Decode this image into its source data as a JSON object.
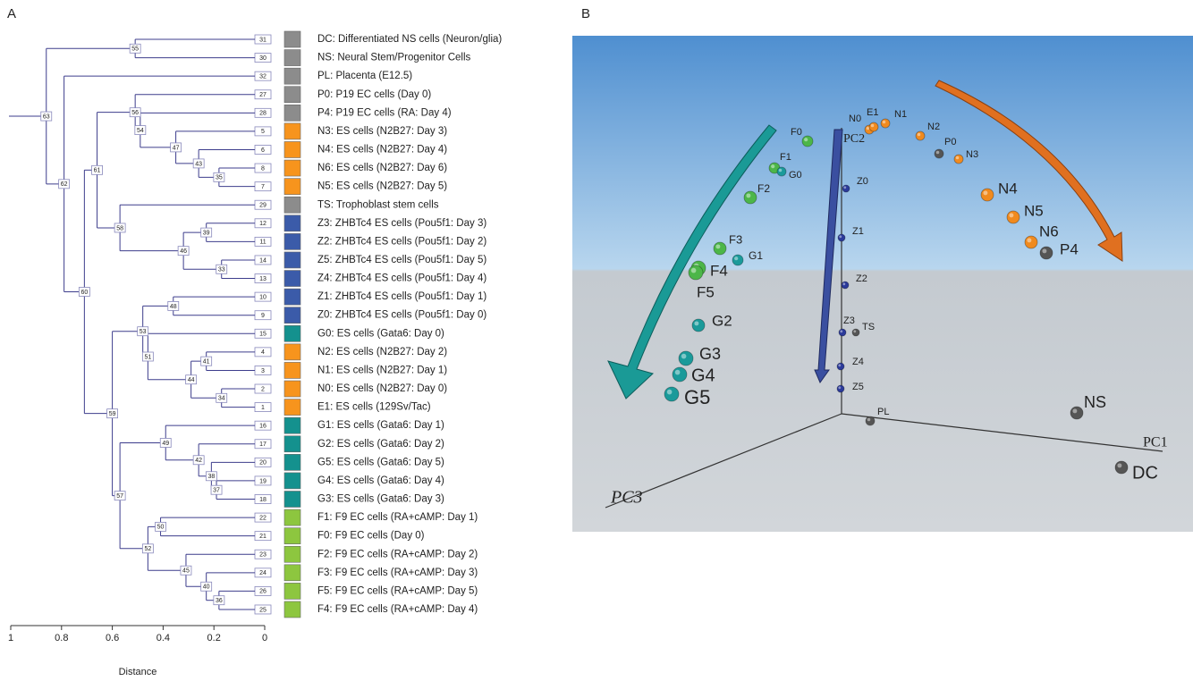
{
  "panel_labels": [
    "A",
    "B"
  ],
  "dendrogram": {
    "axis_label": "Distance",
    "xlim": [
      1,
      0
    ],
    "xticks": [
      1,
      0.8,
      0.6,
      0.4,
      0.2,
      0
    ],
    "tree": {
      "label": "63",
      "distance": 0.86,
      "children": [
        {
          "label": "55",
          "distance": 0.51,
          "children": [
            {
              "id": "31",
              "label": "DC: Differentiated NS cells (Neuron/glia)",
              "color": "#8c8c8c"
            },
            {
              "id": "30",
              "label": "NS: Neural Stem/Progenitor Cells",
              "color": "#8c8c8c"
            }
          ]
        },
        {
          "label": "62",
          "distance": 0.79,
          "children": [
            {
              "id": "32",
              "label": "PL: Placenta (E12.5)",
              "color": "#8c8c8c"
            },
            {
              "label": "60",
              "distance": 0.71,
              "children": [
                {
                  "label": "61",
                  "distance": 0.66,
                  "children": [
                    {
                      "label": "56",
                      "distance": 0.51,
                      "children": [
                        {
                          "id": "27",
                          "label": "P0: P19 EC cells (Day 0)",
                          "color": "#8c8c8c"
                        },
                        {
                          "label": "54",
                          "distance": 0.49,
                          "children": [
                            {
                              "id": "28",
                              "label": "P4: P19 EC cells (RA: Day 4)",
                              "color": "#8c8c8c"
                            },
                            {
                              "label": "47",
                              "distance": 0.35,
                              "children": [
                                {
                                  "id": "5",
                                  "label": "N3: ES cells (N2B27: Day 3)",
                                  "color": "#f7941d"
                                },
                                {
                                  "label": "43",
                                  "distance": 0.26,
                                  "children": [
                                    {
                                      "id": "6",
                                      "label": "N4: ES cells (N2B27: Day 4)",
                                      "color": "#f7941d"
                                    },
                                    {
                                      "label": "35",
                                      "distance": 0.18,
                                      "children": [
                                        {
                                          "id": "8",
                                          "label": "N6: ES cells (N2B27: Day 6)",
                                          "color": "#f7941d"
                                        },
                                        {
                                          "id": "7",
                                          "label": "N5: ES cells (N2B27: Day 5)",
                                          "color": "#f7941d"
                                        }
                                      ]
                                    }
                                  ]
                                }
                              ]
                            }
                          ]
                        }
                      ]
                    },
                    {
                      "label": "58",
                      "distance": 0.57,
                      "children": [
                        {
                          "id": "29",
                          "label": "TS: Trophoblast stem cells",
                          "color": "#8c8c8c"
                        },
                        {
                          "label": "46",
                          "distance": 0.32,
                          "children": [
                            {
                              "label": "39",
                              "distance": 0.23,
                              "children": [
                                {
                                  "id": "12",
                                  "label": "Z3: ZHBTc4 ES cells (Pou5f1: Day 3)",
                                  "color": "#3b5ba9"
                                },
                                {
                                  "id": "11",
                                  "label": "Z2: ZHBTc4 ES cells (Pou5f1: Day 2)",
                                  "color": "#3b5ba9"
                                }
                              ]
                            },
                            {
                              "label": "33",
                              "distance": 0.17,
                              "children": [
                                {
                                  "id": "14",
                                  "label": "Z5: ZHBTc4 ES cells (Pou5f1: Day 5)",
                                  "color": "#3b5ba9"
                                },
                                {
                                  "id": "13",
                                  "label": "Z4: ZHBTc4 ES cells (Pou5f1: Day 4)",
                                  "color": "#3b5ba9"
                                }
                              ]
                            }
                          ]
                        }
                      ]
                    }
                  ]
                },
                {
                  "label": "59",
                  "distance": 0.6,
                  "children": [
                    {
                      "label": "53",
                      "distance": 0.48,
                      "children": [
                        {
                          "label": "48",
                          "distance": 0.36,
                          "children": [
                            {
                              "id": "10",
                              "label": "Z1: ZHBTc4 ES cells (Pou5f1: Day 1)",
                              "color": "#3b5ba9"
                            },
                            {
                              "id": "9",
                              "label": "Z0: ZHBTc4 ES cells (Pou5f1: Day 0)",
                              "color": "#3b5ba9"
                            }
                          ]
                        },
                        {
                          "label": "51",
                          "distance": 0.46,
                          "children": [
                            {
                              "id": "15",
                              "label": "G0: ES cells (Gata6: Day 0)",
                              "color": "#14918e"
                            },
                            {
                              "label": "44",
                              "distance": 0.29,
                              "children": [
                                {
                                  "label": "41",
                                  "distance": 0.23,
                                  "children": [
                                    {
                                      "id": "4",
                                      "label": "N2: ES cells (N2B27: Day 2)",
                                      "color": "#f7941d"
                                    },
                                    {
                                      "id": "3",
                                      "label": "N1: ES cells (N2B27: Day 1)",
                                      "color": "#f7941d"
                                    }
                                  ]
                                },
                                {
                                  "label": "34",
                                  "distance": 0.17,
                                  "children": [
                                    {
                                      "id": "2",
                                      "label": "N0: ES cells (N2B27: Day 0)",
                                      "color": "#f7941d"
                                    },
                                    {
                                      "id": "1",
                                      "label": "E1: ES cells (129Sv/Tac)",
                                      "color": "#f7941d"
                                    }
                                  ]
                                }
                              ]
                            }
                          ]
                        }
                      ]
                    },
                    {
                      "label": "57",
                      "distance": 0.57,
                      "children": [
                        {
                          "label": "49",
                          "distance": 0.39,
                          "children": [
                            {
                              "id": "16",
                              "label": "G1: ES cells (Gata6: Day 1)",
                              "color": "#14918e"
                            },
                            {
                              "label": "42",
                              "distance": 0.26,
                              "children": [
                                {
                                  "id": "17",
                                  "label": "G2: ES cells (Gata6: Day 2)",
                                  "color": "#14918e"
                                },
                                {
                                  "label": "38",
                                  "distance": 0.21,
                                  "children": [
                                    {
                                      "id": "20",
                                      "label": "G5: ES cells (Gata6: Day 5)",
                                      "color": "#14918e"
                                    },
                                    {
                                      "label": "37",
                                      "distance": 0.19,
                                      "children": [
                                        {
                                          "id": "19",
                                          "label": "G4: ES cells (Gata6: Day 4)",
                                          "color": "#14918e"
                                        },
                                        {
                                          "id": "18",
                                          "label": "G3: ES cells (Gata6: Day 3)",
                                          "color": "#14918e"
                                        }
                                      ]
                                    }
                                  ]
                                }
                              ]
                            }
                          ]
                        },
                        {
                          "label": "52",
                          "distance": 0.46,
                          "children": [
                            {
                              "label": "50",
                              "distance": 0.41,
                              "children": [
                                {
                                  "id": "22",
                                  "label": "F1: F9 EC cells (RA+cAMP: Day 1)",
                                  "color": "#8dc63f"
                                },
                                {
                                  "id": "21",
                                  "label": "F0: F9 EC cells (Day 0)",
                                  "color": "#8dc63f"
                                }
                              ]
                            },
                            {
                              "label": "45",
                              "distance": 0.31,
                              "children": [
                                {
                                  "id": "23",
                                  "label": "F2: F9 EC cells (RA+cAMP: Day 2)",
                                  "color": "#8dc63f"
                                },
                                {
                                  "label": "40",
                                  "distance": 0.23,
                                  "children": [
                                    {
                                      "id": "24",
                                      "label": "F3: F9 EC cells (RA+cAMP: Day 3)",
                                      "color": "#8dc63f"
                                    },
                                    {
                                      "label": "36",
                                      "distance": 0.18,
                                      "children": [
                                        {
                                          "id": "26",
                                          "label": "F5: F9 EC cells (RA+cAMP: Day 5)",
                                          "color": "#8dc63f"
                                        },
                                        {
                                          "id": "25",
                                          "label": "F4: F9 EC cells (RA+cAMP: Day 4)",
                                          "color": "#8dc63f"
                                        }
                                      ]
                                    }
                                  ]
                                }
                              ]
                            }
                          ]
                        }
                      ]
                    }
                  ]
                }
              ]
            }
          ]
        }
      ]
    }
  },
  "pca": {
    "axis_labels": [
      "PC1",
      "PC2",
      "PC3"
    ],
    "points": [
      {
        "label": "F0",
        "color": "#4cb648"
      },
      {
        "label": "N0",
        "color": "#f08a1e"
      },
      {
        "label": "E1",
        "color": "#f08a1e"
      },
      {
        "label": "N1",
        "color": "#f08a1e"
      },
      {
        "label": "N2",
        "color": "#f08a1e"
      },
      {
        "label": "P0",
        "color": "#555555"
      },
      {
        "label": "N3",
        "color": "#f08a1e"
      },
      {
        "label": "F1",
        "color": "#4cb648"
      },
      {
        "label": "G0",
        "color": "#1a9a9a"
      },
      {
        "label": "F2",
        "color": "#4cb648"
      },
      {
        "label": "Z0",
        "color": "#2b3a9a"
      },
      {
        "label": "Z1",
        "color": "#2b3a9a"
      },
      {
        "label": "Z2",
        "color": "#2b3a9a"
      },
      {
        "label": "Z3",
        "color": "#2b3a9a"
      },
      {
        "label": "TS",
        "color": "#555555"
      },
      {
        "label": "Z4",
        "color": "#2b3a9a"
      },
      {
        "label": "Z5",
        "color": "#2b3a9a"
      },
      {
        "label": "N4",
        "color": "#f08a1e"
      },
      {
        "label": "N5",
        "color": "#f08a1e"
      },
      {
        "label": "N6",
        "color": "#f08a1e"
      },
      {
        "label": "P4",
        "color": "#555555"
      },
      {
        "label": "F3",
        "color": "#4cb648"
      },
      {
        "label": "G1",
        "color": "#1a9a9a"
      },
      {
        "label": "F4",
        "color": "#4cb648"
      },
      {
        "label": "F5",
        "color": "#4cb648"
      },
      {
        "label": "G2",
        "color": "#1a9a9a"
      },
      {
        "label": "G3",
        "color": "#1a9a9a"
      },
      {
        "label": "G4",
        "color": "#1a9a9a"
      },
      {
        "label": "G5",
        "color": "#1a9a9a"
      },
      {
        "label": "NS",
        "color": "#555555"
      },
      {
        "label": "PL",
        "color": "#555555"
      },
      {
        "label": "DC",
        "color": "#555555"
      }
    ]
  }
}
